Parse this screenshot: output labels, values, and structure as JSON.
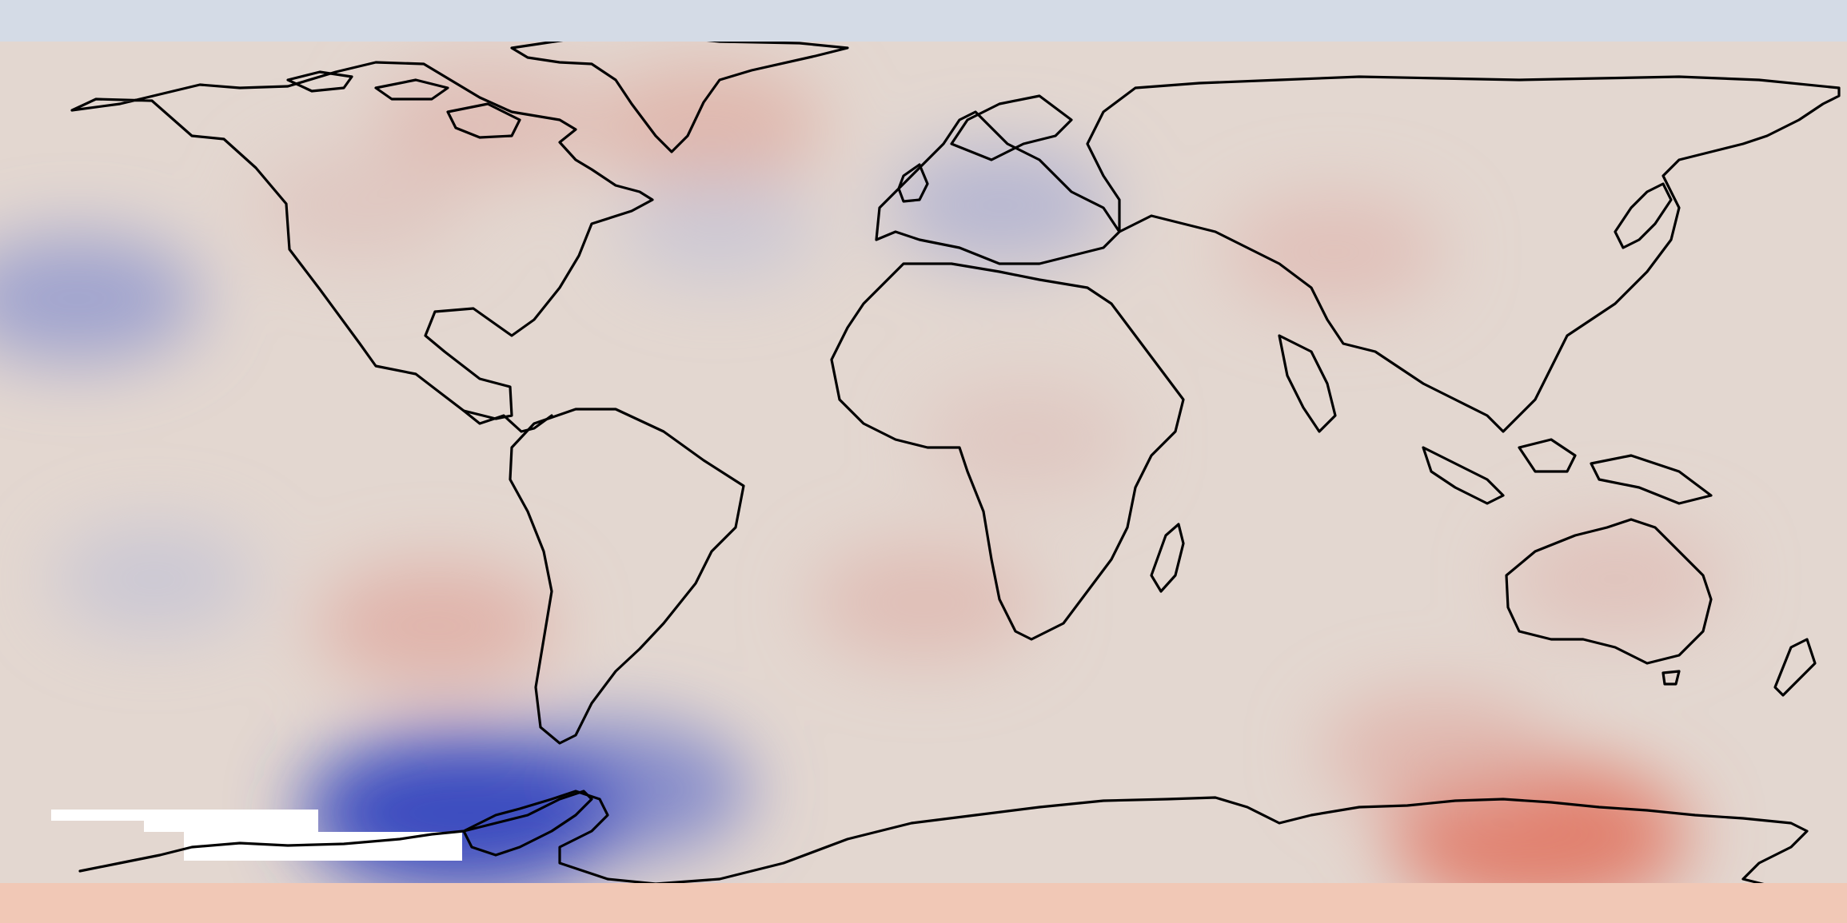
{
  "map": {
    "projection": "equirectangular",
    "extent": {
      "lon": [
        -180,
        180
      ],
      "lat": [
        -90,
        90
      ]
    },
    "field": "anomaly",
    "colormap": "coolwarm",
    "value_range": [
      -1,
      1
    ],
    "colors": {
      "neutral": "#dddcdc",
      "warm": "#e26952",
      "cold": "#3b4cc0",
      "missing": "#ffffff",
      "coastline": "#000000",
      "border": "#d4dbe6"
    },
    "features": [
      {
        "name": "greenland",
        "lon": -42,
        "lat": 72,
        "value": 0.42
      },
      {
        "name": "arctic-canada",
        "lon": -85,
        "lat": 73,
        "value": 0.35
      },
      {
        "name": "north-america",
        "lon": -110,
        "lat": 55,
        "value": 0.25
      },
      {
        "name": "north-pacific",
        "lon": -165,
        "lat": 35,
        "value": -0.5
      },
      {
        "name": "europe",
        "lon": 15,
        "lat": 55,
        "value": -0.35
      },
      {
        "name": "north-atlantic",
        "lon": -40,
        "lat": 50,
        "value": -0.18
      },
      {
        "name": "central-asia",
        "lon": 80,
        "lat": 45,
        "value": 0.32
      },
      {
        "name": "africa",
        "lon": 20,
        "lat": 5,
        "value": 0.25
      },
      {
        "name": "south-pacific-cool",
        "lon": -150,
        "lat": -25,
        "value": -0.2
      },
      {
        "name": "southeast-pacific",
        "lon": -95,
        "lat": -35,
        "value": 0.45
      },
      {
        "name": "south-atlantic",
        "lon": 0,
        "lat": -30,
        "value": 0.35
      },
      {
        "name": "australia",
        "lon": 135,
        "lat": -25,
        "value": 0.3
      },
      {
        "name": "weddell-sea",
        "lon": -60,
        "lat": -70,
        "value": -0.65
      },
      {
        "name": "antarctic-peninsula",
        "lon": -90,
        "lat": -75,
        "value": -1.0
      },
      {
        "name": "east-antarctica",
        "lon": 120,
        "lat": -80,
        "value": 0.85
      },
      {
        "name": "southern-ocean-east",
        "lon": 100,
        "lat": -62,
        "value": 0.4
      }
    ]
  }
}
